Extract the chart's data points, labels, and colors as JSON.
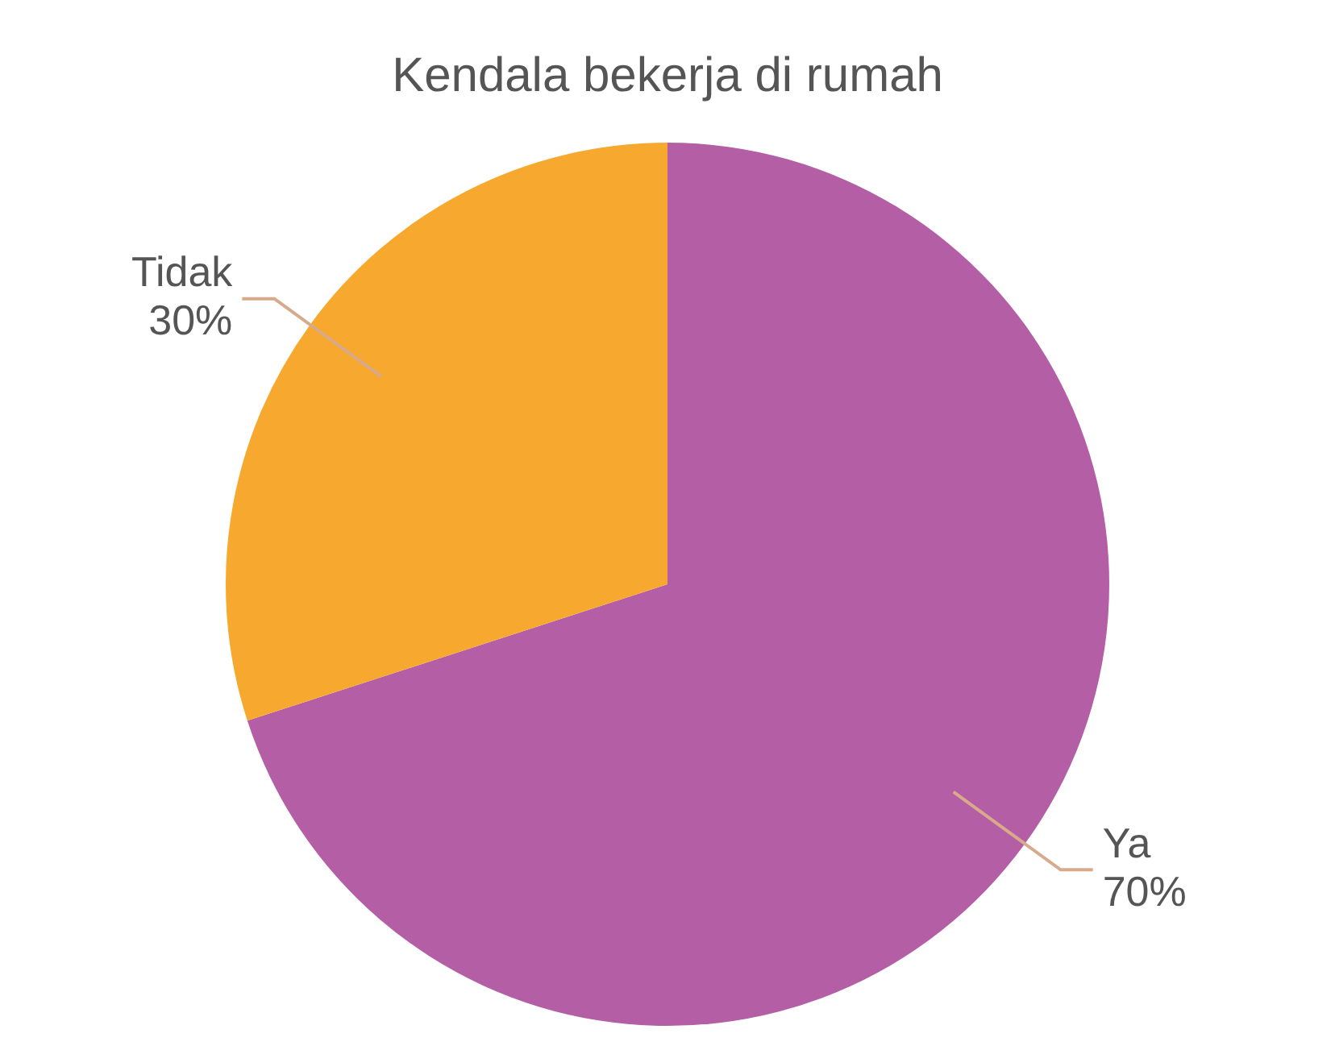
{
  "chart_data": {
    "type": "pie",
    "title": "Kendala bekerja di rumah",
    "categories": [
      "Ya",
      "Tidak"
    ],
    "values": [
      70,
      30
    ],
    "value_labels": [
      "70%",
      "30%"
    ],
    "colors": [
      "#b45ea6",
      "#f7a92f"
    ],
    "legend": false
  }
}
